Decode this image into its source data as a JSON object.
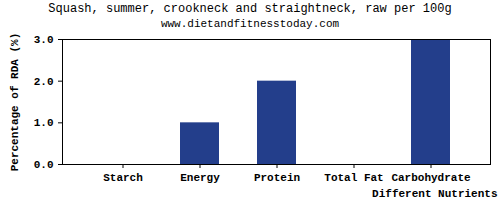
{
  "chart_data": {
    "type": "bar",
    "title": "Squash, summer, crookneck and straightneck, raw per 100g",
    "subtitle": "www.dietandfitnesstoday.com",
    "x_label": "Different Nutrients",
    "y_label": "Percentage of RDA (%)",
    "categories": [
      "Starch",
      "Energy",
      "Protein",
      "Total Fat",
      "Carbohydrate"
    ],
    "values": [
      0,
      1,
      2,
      0,
      3
    ],
    "color": "#233e8b",
    "ylim": [
      0,
      3
    ],
    "yticks": [
      {
        "value": 0,
        "label": "0.0"
      },
      {
        "value": 1,
        "label": "1.0"
      },
      {
        "value": 2,
        "label": "2.0"
      },
      {
        "value": 3,
        "label": "3.0"
      }
    ],
    "grid": false
  }
}
